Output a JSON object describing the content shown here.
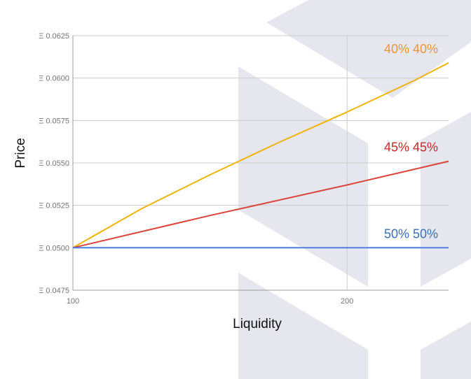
{
  "chart_data": {
    "type": "line",
    "title": "",
    "xlabel": "Liquidity",
    "ylabel": "Price",
    "xlim": [
      100,
      237
    ],
    "ylim": [
      0.0475,
      0.0625
    ],
    "x_ticks": [
      100,
      200
    ],
    "x_tick_labels": [
      "100",
      "200"
    ],
    "y_ticks": [
      0.0475,
      0.05,
      0.0525,
      0.055,
      0.0575,
      0.06,
      0.0625
    ],
    "y_tick_labels": [
      "Ξ 0.0475",
      "Ξ 0.0500",
      "Ξ 0.0525",
      "Ξ 0.0550",
      "Ξ 0.0575",
      "Ξ 0.0600",
      "Ξ 0.0625"
    ],
    "grid": true,
    "legend": "none",
    "series": [
      {
        "name": "40% 40%",
        "color": "#f0b400",
        "label_color": "#e8963a",
        "x": [
          100,
          125,
          150,
          175,
          200,
          225,
          237
        ],
        "y": [
          0.05,
          0.0523,
          0.0543,
          0.0562,
          0.058,
          0.0599,
          0.0609
        ]
      },
      {
        "name": "45% 45%",
        "color": "#d9453a",
        "label_color": "#c62828",
        "x": [
          100,
          150,
          200,
          237
        ],
        "y": [
          0.05,
          0.0519,
          0.0537,
          0.0551
        ]
      },
      {
        "name": "50% 50%",
        "color": "#4a7fe0",
        "label_color": "#3a6fb8",
        "x": [
          100,
          237
        ],
        "y": [
          0.05,
          0.05
        ]
      }
    ]
  }
}
